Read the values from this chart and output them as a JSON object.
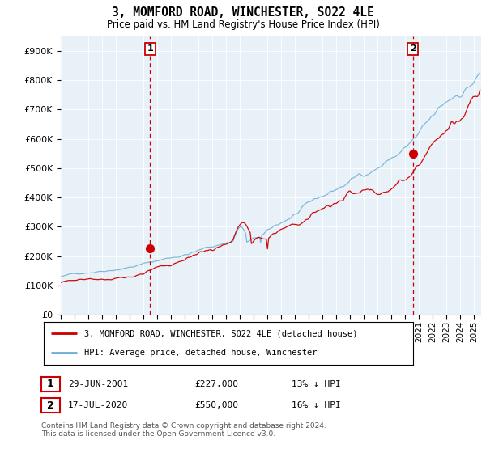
{
  "title": "3, MOMFORD ROAD, WINCHESTER, SO22 4LE",
  "subtitle": "Price paid vs. HM Land Registry's House Price Index (HPI)",
  "ylim": [
    0,
    950000
  ],
  "xlim_start": 1995.0,
  "xlim_end": 2025.5,
  "legend_line1": "3, MOMFORD ROAD, WINCHESTER, SO22 4LE (detached house)",
  "legend_line2": "HPI: Average price, detached house, Winchester",
  "purchase1_date": 2001.49,
  "purchase1_price": 227000,
  "purchase1_label": "1",
  "purchase1_text": "29-JUN-2001",
  "purchase1_amount": "£227,000",
  "purchase1_hpi": "13% ↓ HPI",
  "purchase2_date": 2020.54,
  "purchase2_price": 550000,
  "purchase2_label": "2",
  "purchase2_text": "17-JUL-2020",
  "purchase2_amount": "£550,000",
  "purchase2_hpi": "16% ↓ HPI",
  "line_color_red": "#cc0000",
  "line_color_blue": "#6aaed6",
  "vline_color": "#cc0000",
  "bg_color": "#ddeeff",
  "footnote": "Contains HM Land Registry data © Crown copyright and database right 2024.\nThis data is licensed under the Open Government Licence v3.0."
}
